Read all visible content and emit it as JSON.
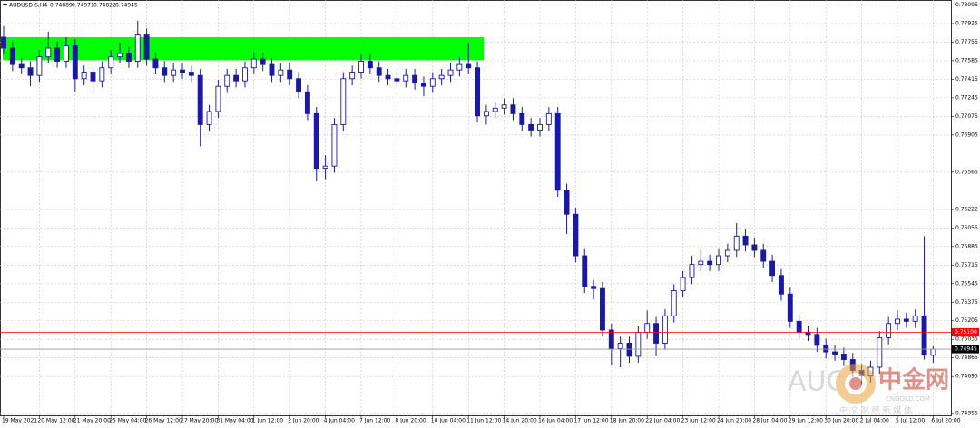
{
  "chart_data": {
    "type": "candlestick",
    "title": "AUDUSD-S,H4",
    "header_values": [
      "0.74889",
      "0.74971",
      "0.74822",
      "0.74945"
    ],
    "categories": [
      "19 May 2021",
      null,
      null,
      null,
      "20 May 12:00",
      null,
      null,
      null,
      "21 May 20:00",
      null,
      null,
      null,
      "25 May 04:00",
      null,
      null,
      null,
      "26 May 12:00",
      null,
      null,
      null,
      "27 May 20:00",
      null,
      null,
      null,
      "31 May 04:00",
      null,
      null,
      null,
      "1 Jun 12:00",
      null,
      null,
      null,
      "2 Jun 20:00",
      null,
      null,
      null,
      "4 Jun 04:00",
      null,
      null,
      null,
      "7 Jun 12:00",
      null,
      null,
      null,
      "8 Jun 20:00",
      null,
      null,
      null,
      "10 Jun 04:00",
      null,
      null,
      null,
      "11 Jun 12:00",
      null,
      null,
      null,
      "14 Jun 20:00",
      null,
      null,
      null,
      "16 Jun 04:00",
      null,
      null,
      null,
      "17 Jun 12:00",
      null,
      null,
      null,
      "18 Jun 20:00",
      null,
      null,
      null,
      "22 Jun 04:00",
      null,
      null,
      null,
      "23 Jun 12:00",
      null,
      null,
      null,
      "24 Jun 20:00",
      null,
      null,
      null,
      "28 Jun 04:00",
      null,
      null,
      null,
      "29 Jun 12:00",
      null,
      null,
      null,
      "30 Jun 20:00",
      null,
      null,
      null,
      "2 Jul 04:00",
      null,
      null,
      null,
      "5 Jul 12:00",
      null,
      null,
      null,
      "6 Jul 20:00"
    ],
    "open": [
      0.778,
      0.777,
      0.7755,
      0.7752,
      0.7745,
      0.7762,
      0.777,
      0.7758,
      0.7772,
      0.7742,
      0.7748,
      0.774,
      0.7752,
      0.7762,
      0.7765,
      0.7758,
      0.7782,
      0.776,
      0.7752,
      0.7745,
      0.775,
      0.7748,
      0.7745,
      0.77,
      0.7712,
      0.7735,
      0.7745,
      0.774,
      0.7752,
      0.776,
      0.7755,
      0.7745,
      0.775,
      0.7742,
      0.773,
      0.771,
      0.766,
      0.7662,
      0.77,
      0.7742,
      0.7748,
      0.7758,
      0.7752,
      0.7745,
      0.7742,
      0.774,
      0.7745,
      0.7738,
      0.7735,
      0.7742,
      0.7745,
      0.775,
      0.7755,
      0.7752,
      0.7708,
      0.7712,
      0.7715,
      0.7718,
      0.771,
      0.77,
      0.7695,
      0.77,
      0.771,
      0.764,
      0.7618,
      0.758,
      0.7552,
      0.755,
      0.7512,
      0.7495,
      0.75,
      0.7488,
      0.751,
      0.7518,
      0.75,
      0.7525,
      0.7548,
      0.756,
      0.7572,
      0.7575,
      0.7572,
      0.758,
      0.7585,
      0.7598,
      0.759,
      0.7585,
      0.7575,
      0.7562,
      0.7545,
      0.752,
      0.751,
      0.7508,
      0.7498,
      0.7492,
      0.749,
      0.7485,
      0.7475,
      0.747,
      0.7478,
      0.7505,
      0.7518,
      0.7522,
      0.752,
      0.7525,
      0.74889
    ],
    "high": [
      0.779,
      0.7776,
      0.7761,
      0.7758,
      0.7768,
      0.7785,
      0.7776,
      0.778,
      0.7778,
      0.7754,
      0.7754,
      0.7758,
      0.7768,
      0.7775,
      0.7771,
      0.7795,
      0.7788,
      0.7766,
      0.7758,
      0.7756,
      0.7756,
      0.7754,
      0.7751,
      0.7718,
      0.7741,
      0.7751,
      0.7751,
      0.7758,
      0.7766,
      0.7766,
      0.7761,
      0.7756,
      0.7756,
      0.7748,
      0.7736,
      0.7716,
      0.7672,
      0.7706,
      0.7748,
      0.7754,
      0.7764,
      0.7764,
      0.7758,
      0.7751,
      0.7748,
      0.7751,
      0.7751,
      0.7744,
      0.7748,
      0.7751,
      0.7756,
      0.7762,
      0.7775,
      0.7758,
      0.7718,
      0.7721,
      0.7724,
      0.7724,
      0.7716,
      0.7706,
      0.7706,
      0.7716,
      0.7716,
      0.7646,
      0.7624,
      0.7586,
      0.7558,
      0.7556,
      0.7518,
      0.7506,
      0.7506,
      0.7516,
      0.753,
      0.7524,
      0.7531,
      0.7554,
      0.7566,
      0.758,
      0.7586,
      0.7581,
      0.7586,
      0.7591,
      0.761,
      0.7604,
      0.7596,
      0.7591,
      0.7581,
      0.7568,
      0.7551,
      0.7526,
      0.7516,
      0.7514,
      0.7504,
      0.7498,
      0.7496,
      0.7491,
      0.7481,
      0.7484,
      0.7511,
      0.7524,
      0.753,
      0.7528,
      0.7531,
      0.7598,
      0.74971
    ],
    "low": [
      0.7764,
      0.7749,
      0.7746,
      0.7735,
      0.7739,
      0.7756,
      0.7752,
      0.7752,
      0.773,
      0.7736,
      0.7728,
      0.7734,
      0.7746,
      0.7756,
      0.7752,
      0.7752,
      0.7754,
      0.7746,
      0.7739,
      0.7739,
      0.7742,
      0.7739,
      0.768,
      0.7694,
      0.7706,
      0.7729,
      0.7734,
      0.7734,
      0.7746,
      0.7749,
      0.7739,
      0.7739,
      0.7736,
      0.7724,
      0.7704,
      0.7648,
      0.765,
      0.7656,
      0.7694,
      0.7736,
      0.7742,
      0.7746,
      0.7739,
      0.7736,
      0.7734,
      0.7734,
      0.7732,
      0.7726,
      0.7729,
      0.7736,
      0.7739,
      0.7744,
      0.7746,
      0.7702,
      0.77,
      0.7706,
      0.7709,
      0.7704,
      0.7694,
      0.7689,
      0.7689,
      0.7694,
      0.7634,
      0.76,
      0.7574,
      0.7546,
      0.754,
      0.7506,
      0.748,
      0.7478,
      0.7482,
      0.7482,
      0.7504,
      0.7488,
      0.7494,
      0.7519,
      0.7542,
      0.7554,
      0.7566,
      0.7566,
      0.7566,
      0.7574,
      0.7579,
      0.7584,
      0.7579,
      0.7569,
      0.7556,
      0.7539,
      0.7514,
      0.7504,
      0.7502,
      0.7492,
      0.7486,
      0.7484,
      0.7479,
      0.7469,
      0.7462,
      0.7464,
      0.7472,
      0.7499,
      0.7512,
      0.7514,
      0.7514,
      0.7485,
      0.74822
    ],
    "close": [
      0.777,
      0.7755,
      0.7752,
      0.7745,
      0.7762,
      0.777,
      0.7758,
      0.7772,
      0.7742,
      0.7748,
      0.774,
      0.7752,
      0.7762,
      0.7765,
      0.7758,
      0.7782,
      0.776,
      0.7752,
      0.7745,
      0.775,
      0.7748,
      0.7745,
      0.77,
      0.7712,
      0.7735,
      0.7745,
      0.774,
      0.7752,
      0.776,
      0.7755,
      0.7745,
      0.775,
      0.7742,
      0.773,
      0.771,
      0.766,
      0.7662,
      0.77,
      0.7742,
      0.7748,
      0.7758,
      0.7752,
      0.7745,
      0.7742,
      0.774,
      0.7745,
      0.7738,
      0.7735,
      0.7742,
      0.7745,
      0.775,
      0.7755,
      0.7752,
      0.7708,
      0.7712,
      0.7715,
      0.7718,
      0.771,
      0.77,
      0.7695,
      0.77,
      0.771,
      0.764,
      0.7618,
      0.758,
      0.7552,
      0.755,
      0.7512,
      0.7495,
      0.75,
      0.7488,
      0.751,
      0.7518,
      0.75,
      0.7525,
      0.7548,
      0.756,
      0.7572,
      0.7575,
      0.7572,
      0.758,
      0.7585,
      0.7598,
      0.759,
      0.7585,
      0.7575,
      0.7562,
      0.7545,
      0.752,
      0.751,
      0.7508,
      0.7498,
      0.7492,
      0.749,
      0.7485,
      0.7475,
      0.747,
      0.7478,
      0.7505,
      0.7518,
      0.7522,
      0.752,
      0.7525,
      0.7489,
      0.74945
    ],
    "color": "#1a1aa0",
    "ylim": [
      0.7434,
      0.7814
    ],
    "yticks": [
      0.78095,
      0.77925,
      0.77755,
      0.77585,
      0.77415,
      0.77245,
      0.77075,
      0.76905,
      0.76565,
      0.76222,
      0.76055,
      0.75885,
      0.75715,
      0.75545,
      0.75375,
      0.75205,
      0.75035,
      0.74865,
      0.74695,
      0.74355
    ],
    "grid": true,
    "zone": {
      "from": 0.7759,
      "to": 0.778,
      "color": "#00ff00"
    },
    "level": {
      "value": 0.751,
      "label": "0.75100",
      "color": "#ff0000"
    },
    "last_price": {
      "value": 0.74945,
      "label": "0.74945",
      "color": "#000000"
    },
    "watermark": {
      "text": "AUG",
      "logo": "中金网",
      "site": "CNGOLD.COM",
      "slogan": "中 文 财 经 新 媒 体"
    }
  }
}
